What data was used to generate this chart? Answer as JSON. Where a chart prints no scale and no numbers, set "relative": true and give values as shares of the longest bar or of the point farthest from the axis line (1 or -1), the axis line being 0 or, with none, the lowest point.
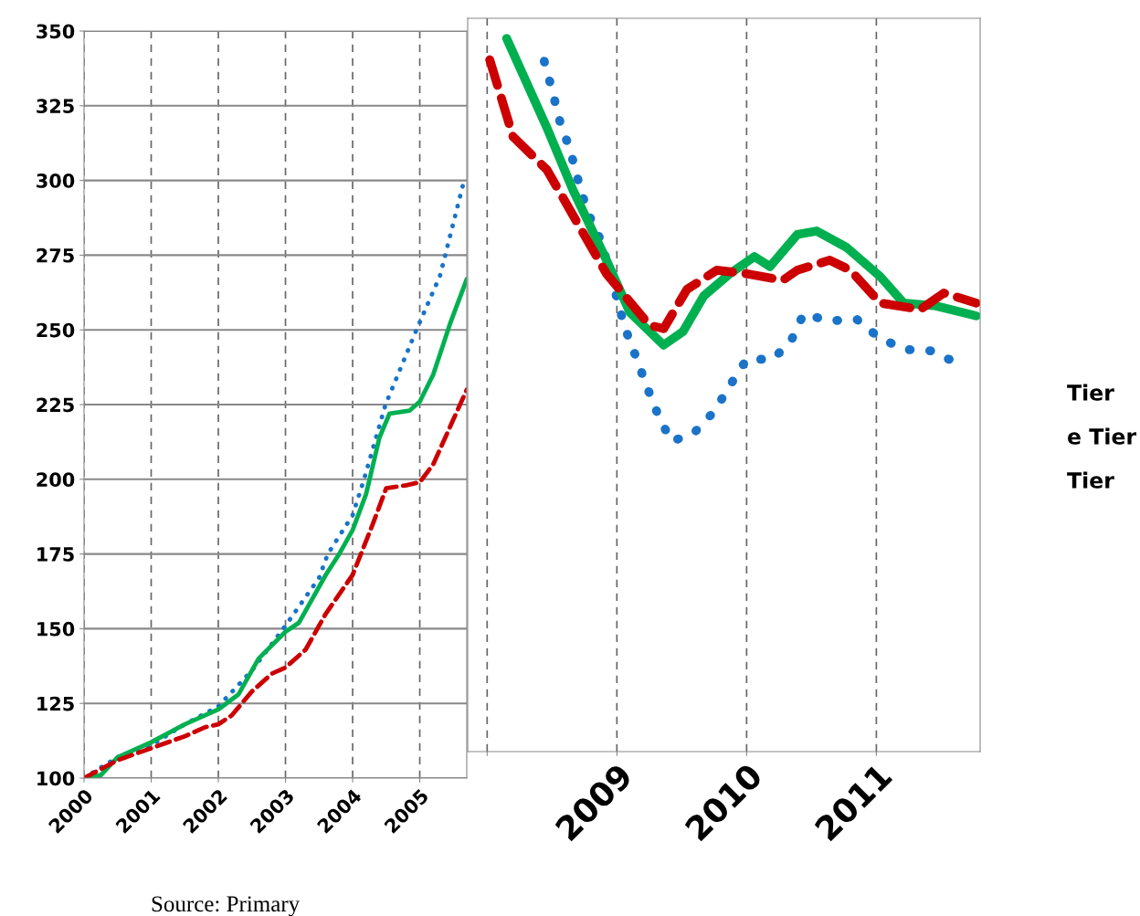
{
  "chart_data": [
    {
      "type": "line",
      "xlim": [
        2000,
        2005.7
      ],
      "xticks": [
        2000,
        2001,
        2002,
        2003,
        2004,
        2005
      ],
      "ylim": [
        100,
        350
      ],
      "yticks": [
        100,
        125,
        150,
        175,
        200,
        225,
        250,
        275,
        300,
        325,
        350
      ],
      "grid": true,
      "marker": "none",
      "series": [
        {
          "color": "#1a73c8",
          "line_style": "dotted",
          "x": [
            2000,
            2000.5,
            2001,
            2001.5,
            2002,
            2002.5,
            2003,
            2003.5,
            2003.63,
            2004,
            2004.17,
            2004.49,
            2004.95,
            2005.3,
            2005.66
          ],
          "values": [
            100,
            107,
            111,
            118,
            124,
            136,
            151,
            167,
            175,
            188,
            200,
            225,
            250,
            268,
            300
          ]
        },
        {
          "color": "#00b050",
          "line_style": "solid",
          "x": [
            2000,
            2000.25,
            2000.5,
            2001,
            2001.5,
            2002,
            2002.3,
            2002.6,
            2003,
            2003.2,
            2003.6,
            2003.8,
            2004,
            2004.2,
            2004.4,
            2004.55,
            2004.85,
            2005,
            2005.2,
            2005.45,
            2005.7
          ],
          "values": [
            100,
            101,
            107,
            112,
            118,
            123,
            128,
            140,
            149,
            152,
            168,
            175,
            183,
            195,
            214,
            222,
            223,
            226,
            235,
            252,
            267
          ]
        },
        {
          "color": "#cc0000",
          "line_style": "dashed",
          "x": [
            2000,
            2000.5,
            2001,
            2001.5,
            2001.8,
            2002,
            2002.2,
            2002.5,
            2002.8,
            2003,
            2003.3,
            2003.6,
            2004,
            2004.3,
            2004.5,
            2004.8,
            2005,
            2005.2,
            2005.5,
            2005.7
          ],
          "values": [
            100,
            106,
            110,
            114,
            117,
            118,
            121,
            129,
            135,
            137,
            143,
            155,
            168,
            185,
            197,
            198,
            199,
            205,
            220,
            230
          ]
        }
      ],
      "annotations": [
        "Source: Primary"
      ]
    },
    {
      "type": "line",
      "relative": true,
      "xlim": [
        2007.85,
        2011.8
      ],
      "xticks": [
        {
          "value": 2008,
          "label": null
        },
        2009,
        2010,
        2011
      ],
      "grid": "x",
      "marker": "none",
      "series": [
        {
          "color": "#1a73c8",
          "line_style": "dotted",
          "x": [
            2008.44,
            2008.5,
            2008.56,
            2008.64,
            2008.7,
            2008.77,
            2008.87,
            2008.94,
            2009.0,
            2009.06,
            2009.15,
            2009.23,
            2009.32,
            2009.42,
            2009.59,
            2009.75,
            2009.87,
            2010.0,
            2010.2,
            2010.34,
            2010.44,
            2010.63,
            2010.85,
            2011.01,
            2011.21,
            2011.42,
            2011.62
          ],
          "values": [
            0.968,
            0.928,
            0.884,
            0.843,
            0.802,
            0.758,
            0.719,
            0.677,
            0.636,
            0.595,
            0.552,
            0.512,
            0.471,
            0.435,
            0.446,
            0.477,
            0.513,
            0.55,
            0.55,
            0.575,
            0.614,
            0.604,
            0.606,
            0.582,
            0.564,
            0.562,
            0.545
          ]
        },
        {
          "color": "#00b050",
          "line_style": "solid",
          "x": [
            2008.15,
            2008.46,
            2008.66,
            2008.92,
            2009.1,
            2009.36,
            2009.51,
            2009.67,
            2009.87,
            2010.06,
            2010.18,
            2010.39,
            2010.54,
            2010.77,
            2011.03,
            2011.21,
            2011.46,
            2011.77
          ],
          "values": [
            1.0,
            0.875,
            0.788,
            0.689,
            0.616,
            0.57,
            0.589,
            0.639,
            0.67,
            0.694,
            0.68,
            0.725,
            0.73,
            0.707,
            0.666,
            0.629,
            0.625,
            0.611
          ]
        },
        {
          "color": "#cc0000",
          "line_style": "dashed",
          "x": [
            2008.02,
            2008.2,
            2008.46,
            2008.92,
            2009.25,
            2009.36,
            2009.54,
            2009.77,
            2010.0,
            2010.28,
            2010.39,
            2010.64,
            2010.8,
            2011.03,
            2011.34,
            2011.52,
            2011.77
          ],
          "values": [
            0.97,
            0.862,
            0.816,
            0.67,
            0.598,
            0.593,
            0.648,
            0.675,
            0.67,
            0.661,
            0.675,
            0.689,
            0.675,
            0.629,
            0.62,
            0.643,
            0.629
          ]
        }
      ],
      "annotations": [
        "Tier",
        "e Tier",
        "Tier"
      ]
    }
  ]
}
